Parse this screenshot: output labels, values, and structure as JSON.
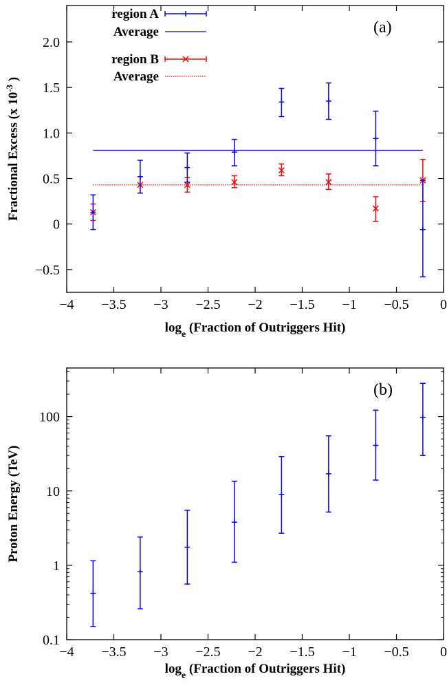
{
  "chart_data": [
    {
      "panel_label": "(a)",
      "type": "scatter",
      "error_bars": true,
      "xlabel": {
        "main": "log",
        "sub": "e",
        "rest": " (Fraction of Outriggers Hit)"
      },
      "ylabel": {
        "main": "Fractional Excess (x 10",
        "sup": "-3",
        "rest": " )"
      },
      "xlim": [
        -4,
        0
      ],
      "ylim": [
        -0.75,
        2.4
      ],
      "x_ticks": [
        -4,
        -3.5,
        -3,
        -2.5,
        -2,
        -1.5,
        -1,
        -0.5,
        0
      ],
      "x_tick_labels": [
        "−4",
        "−3.5",
        "−3",
        "−2.5",
        "−2",
        "−1.5",
        "−1",
        "−0.5",
        "0"
      ],
      "y_ticks": [
        -0.5,
        0,
        0.5,
        1.0,
        1.5,
        2.0
      ],
      "y_tick_labels": [
        "−0.5",
        "0",
        "0.5",
        "1.0",
        "1.5",
        "2.0"
      ],
      "grid": false,
      "legend_position": "top-left",
      "series": [
        {
          "name": "region  A",
          "color": "#0000ff",
          "marker": "plus",
          "points": [
            {
              "x": -3.72,
              "y": 0.13,
              "lo": -0.06,
              "hi": 0.32
            },
            {
              "x": -3.22,
              "y": 0.52,
              "lo": 0.34,
              "hi": 0.7
            },
            {
              "x": -2.72,
              "y": 0.62,
              "lo": 0.46,
              "hi": 0.78
            },
            {
              "x": -2.22,
              "y": 0.79,
              "lo": 0.64,
              "hi": 0.93
            },
            {
              "x": -1.72,
              "y": 1.34,
              "lo": 1.18,
              "hi": 1.49
            },
            {
              "x": -1.22,
              "y": 1.35,
              "lo": 1.15,
              "hi": 1.55
            },
            {
              "x": -0.72,
              "y": 0.94,
              "lo": 0.64,
              "hi": 1.24
            },
            {
              "x": -0.22,
              "y": -0.06,
              "lo": -0.58,
              "hi": 0.48
            }
          ]
        },
        {
          "name": "region  B",
          "color": "#ff0000",
          "marker": "cross",
          "points": [
            {
              "x": -3.72,
              "y": 0.13,
              "lo": 0.04,
              "hi": 0.22
            },
            {
              "x": -3.22,
              "y": 0.43,
              "lo": 0.34,
              "hi": 0.52
            },
            {
              "x": -2.72,
              "y": 0.43,
              "lo": 0.35,
              "hi": 0.51
            },
            {
              "x": -2.22,
              "y": 0.46,
              "lo": 0.4,
              "hi": 0.53
            },
            {
              "x": -1.72,
              "y": 0.59,
              "lo": 0.53,
              "hi": 0.66
            },
            {
              "x": -1.22,
              "y": 0.46,
              "lo": 0.38,
              "hi": 0.55
            },
            {
              "x": -0.72,
              "y": 0.17,
              "lo": 0.03,
              "hi": 0.3
            },
            {
              "x": -0.22,
              "y": 0.48,
              "lo": 0.25,
              "hi": 0.71
            }
          ]
        }
      ],
      "averages": [
        {
          "name": "Average",
          "color": "#0000ff",
          "style": "solid",
          "value": 0.81,
          "x_range": [
            -3.72,
            -0.22
          ]
        },
        {
          "name": "Average",
          "color": "#ff0000",
          "style": "dotted",
          "value": 0.43,
          "x_range": [
            -3.72,
            -0.22
          ]
        }
      ]
    },
    {
      "panel_label": "(b)",
      "type": "scatter",
      "error_bars": true,
      "y_scale": "log",
      "xlabel": {
        "main": "log",
        "sub": "e",
        "rest": "  (Fraction of Outriggers Hit)"
      },
      "ylabel": "Proton Energy (TeV)",
      "xlim": [
        -4,
        0
      ],
      "ylim": [
        0.1,
        450
      ],
      "x_ticks": [
        -4,
        -3.5,
        -3,
        -2.5,
        -2,
        -1.5,
        -1,
        -0.5,
        0
      ],
      "x_tick_labels": [
        "−4",
        "−3.5",
        "−3",
        "−2.5",
        "−2",
        "−1.5",
        "−1",
        "−0.5",
        "0"
      ],
      "y_ticks": [
        0.1,
        1,
        10,
        100
      ],
      "y_tick_labels": [
        "0.1",
        "1",
        "10",
        "100"
      ],
      "grid": false,
      "series": [
        {
          "color": "#0000ff",
          "marker": "plus",
          "points": [
            {
              "x": -3.72,
              "y": 0.42,
              "lo": 0.15,
              "hi": 1.15
            },
            {
              "x": -3.22,
              "y": 0.82,
              "lo": 0.26,
              "hi": 2.4
            },
            {
              "x": -2.72,
              "y": 1.75,
              "lo": 0.56,
              "hi": 5.5
            },
            {
              "x": -2.22,
              "y": 3.8,
              "lo": 1.1,
              "hi": 13.5
            },
            {
              "x": -1.72,
              "y": 9.0,
              "lo": 2.7,
              "hi": 29
            },
            {
              "x": -1.22,
              "y": 17,
              "lo": 5.2,
              "hi": 55
            },
            {
              "x": -0.72,
              "y": 41,
              "lo": 14,
              "hi": 122
            },
            {
              "x": -0.22,
              "y": 97,
              "lo": 30,
              "hi": 280
            }
          ]
        }
      ]
    }
  ]
}
